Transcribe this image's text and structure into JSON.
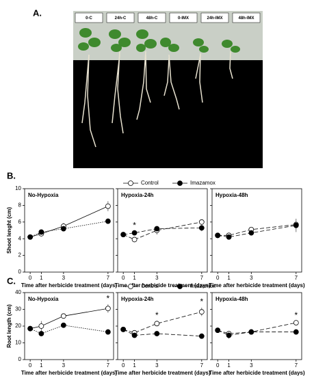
{
  "panel_a": {
    "label": "A.",
    "photo_labels": [
      "0-C",
      "24h-C",
      "48h-C",
      "0-IMX",
      "24h-IMX",
      "48h-IMX"
    ]
  },
  "chart_data": [
    {
      "type": "line",
      "panel_label": "B.",
      "ylabel": "Shoot lenght (cm)",
      "xlabel": "Time after herbicide treatment (days)",
      "x": [
        0,
        1,
        3,
        7
      ],
      "xlim": [
        -0.5,
        7.5
      ],
      "xticks": [
        0,
        1,
        3,
        7
      ],
      "ylim": [
        0,
        10
      ],
      "yticks": [
        0,
        2,
        4,
        6,
        8,
        10
      ],
      "legend": [
        {
          "name": "Control",
          "color": "#ffffff"
        },
        {
          "name": "Imazamox",
          "color": "#000000"
        }
      ],
      "panels": [
        {
          "title": "No-Hypoxia",
          "series": [
            {
              "linestyle": "solid",
              "values": [
                4.2,
                4.6,
                5.5,
                7.9
              ],
              "errors": [
                0.2,
                0.2,
                0.4,
                0.6
              ]
            },
            {
              "linestyle": "dotted",
              "values": [
                4.2,
                4.8,
                5.2,
                6.1
              ],
              "errors": [
                0.2,
                0.2,
                0.3,
                0.2
              ]
            }
          ],
          "annotations": []
        },
        {
          "title": "Hypoxia-24h",
          "series": [
            {
              "linestyle": "dashed",
              "values": [
                4.5,
                3.9,
                5.0,
                6.0
              ],
              "errors": [
                0.2,
                0.2,
                0.5,
                0.3
              ]
            },
            {
              "linestyle": "dashed",
              "values": [
                4.5,
                4.7,
                5.2,
                5.3
              ],
              "errors": [
                0.2,
                0.2,
                0.2,
                0.4
              ]
            }
          ],
          "annotations": [
            {
              "text": "*",
              "x": 1
            }
          ]
        },
        {
          "title": "Hypoxia-48h",
          "series": [
            {
              "linestyle": "dashed",
              "values": [
                4.4,
                4.4,
                5.1,
                5.7
              ],
              "errors": [
                0.2,
                0.2,
                0.2,
                0.3
              ]
            },
            {
              "linestyle": "dashed",
              "values": [
                4.4,
                4.2,
                4.7,
                5.6
              ],
              "errors": [
                0.2,
                0.2,
                0.3,
                0.8
              ]
            }
          ],
          "annotations": []
        }
      ]
    },
    {
      "type": "line",
      "panel_label": "C.",
      "ylabel": "Root length (cm)",
      "xlabel": "Time after herbicide treatment (days)",
      "x": [
        0,
        1,
        3,
        7
      ],
      "xlim": [
        -0.5,
        7.5
      ],
      "xticks": [
        0,
        1,
        3,
        7
      ],
      "ylim": [
        0,
        40
      ],
      "yticks": [
        0,
        10,
        20,
        30,
        40
      ],
      "legend": [
        {
          "name": "Control",
          "color": "#ffffff"
        },
        {
          "name": "Imazamox",
          "color": "#000000"
        }
      ],
      "panels": [
        {
          "title": "No-Hypoxia",
          "series": [
            {
              "linestyle": "solid",
              "values": [
                18.5,
                20,
                26,
                30.5
              ],
              "errors": [
                1,
                3,
                1.5,
                2.5
              ]
            },
            {
              "linestyle": "dotted",
              "values": [
                18.5,
                15.5,
                20.5,
                16.5
              ],
              "errors": [
                1,
                1,
                0.8,
                1.5
              ]
            }
          ],
          "annotations": [
            {
              "text": "*",
              "x": 7
            }
          ]
        },
        {
          "title": "Hypoxia-24h",
          "series": [
            {
              "linestyle": "dashed",
              "values": [
                18,
                16,
                21.5,
                28.5
              ],
              "errors": [
                1,
                1.5,
                1.5,
                2.5
              ]
            },
            {
              "linestyle": "dashed",
              "values": [
                18,
                14.5,
                15.5,
                14
              ],
              "errors": [
                1,
                1,
                1,
                1.5
              ]
            }
          ],
          "annotations": [
            {
              "text": "*",
              "x": 3
            },
            {
              "text": "*",
              "x": 7
            }
          ]
        },
        {
          "title": "Hypoxia-48h",
          "series": [
            {
              "linestyle": "dashed",
              "values": [
                17.5,
                15.5,
                16.5,
                22
              ],
              "errors": [
                1,
                1,
                1,
                1
              ]
            },
            {
              "linestyle": "dashed",
              "values": [
                17.5,
                14.5,
                16.5,
                16.5
              ],
              "errors": [
                1,
                2,
                1,
                1.5
              ]
            }
          ],
          "annotations": [
            {
              "text": "*",
              "x": 7
            }
          ]
        }
      ]
    }
  ]
}
